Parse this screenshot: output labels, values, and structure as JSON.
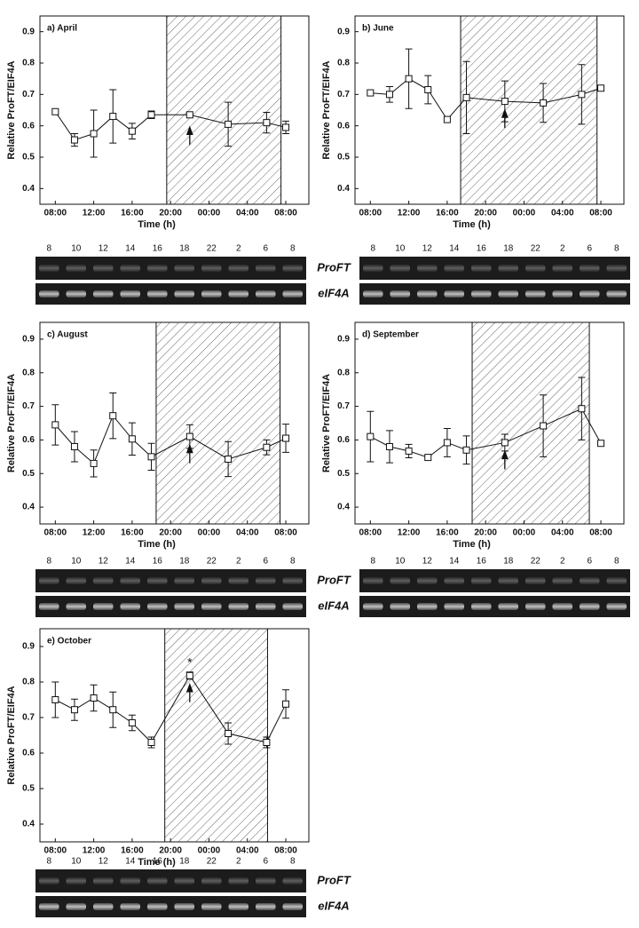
{
  "chart_data": [
    {
      "type": "line",
      "title": "a) April",
      "xlabel": "Time (h)",
      "ylabel": "Relative ProFT/EIF4A",
      "x": [
        8,
        10,
        12,
        14,
        16,
        18,
        22,
        26,
        30,
        32
      ],
      "values": [
        0.645,
        0.555,
        0.575,
        0.63,
        0.583,
        0.635,
        0.635,
        0.605,
        0.61,
        0.595
      ],
      "errors": [
        null,
        0.02,
        0.075,
        0.085,
        0.025,
        0.012,
        null,
        0.07,
        0.033,
        0.02
      ],
      "night": [
        19.6,
        31.5
      ],
      "xlim": [
        6.4,
        34.4
      ],
      "ylim": [
        0.35,
        0.95
      ],
      "xticks": [
        {
          "value": 8,
          "label": "08:00"
        },
        {
          "value": 12,
          "label": "12:00"
        },
        {
          "value": 16,
          "label": "16:00"
        },
        {
          "value": 20,
          "label": "20:00"
        },
        {
          "value": 24,
          "label": "00:00"
        },
        {
          "value": 28,
          "label": "04:00"
        },
        {
          "value": 32,
          "label": "08:00"
        }
      ],
      "yticks": [
        0.4,
        0.5,
        0.6,
        0.7,
        0.8,
        0.9
      ],
      "gel": {
        "lanes": [
          "8",
          "10",
          "12",
          "14",
          "16",
          "18",
          "22",
          "2",
          "6",
          "8"
        ],
        "rows": [
          "ProFT",
          "eIF4A"
        ]
      }
    },
    {
      "type": "line",
      "title": "b) June",
      "xlabel": "Time (h)",
      "ylabel": "Relative ProFT/EIF4A",
      "x": [
        8,
        10,
        12,
        14,
        16,
        18,
        22,
        26,
        30,
        32
      ],
      "values": [
        0.705,
        0.7,
        0.75,
        0.715,
        0.62,
        0.69,
        0.678,
        0.673,
        0.7,
        0.72
      ],
      "errors": [
        null,
        0.025,
        0.095,
        0.045,
        null,
        0.115,
        0.065,
        0.062,
        0.095,
        null
      ],
      "night": [
        17.4,
        31.6
      ],
      "xlim": [
        6.4,
        34.4
      ],
      "ylim": [
        0.35,
        0.95
      ],
      "xticks": [
        {
          "value": 8,
          "label": "08:00"
        },
        {
          "value": 12,
          "label": "12:00"
        },
        {
          "value": 16,
          "label": "16:00"
        },
        {
          "value": 20,
          "label": "20:00"
        },
        {
          "value": 24,
          "label": "00:00"
        },
        {
          "value": 28,
          "label": "04:00"
        },
        {
          "value": 32,
          "label": "08:00"
        }
      ],
      "yticks": [
        0.4,
        0.5,
        0.6,
        0.7,
        0.8,
        0.9
      ],
      "gel": {
        "lanes": [
          "8",
          "10",
          "12",
          "14",
          "16",
          "18",
          "22",
          "2",
          "6",
          "8"
        ]
      }
    },
    {
      "type": "line",
      "title": "c) August",
      "xlabel": "Time (h)",
      "ylabel": "Relative ProFT/EIF4A",
      "x": [
        8,
        10,
        12,
        14,
        16,
        18,
        22,
        26,
        30,
        32
      ],
      "values": [
        0.645,
        0.58,
        0.53,
        0.672,
        0.603,
        0.55,
        0.61,
        0.543,
        0.578,
        0.605
      ],
      "errors": [
        0.06,
        0.045,
        0.04,
        0.068,
        0.048,
        0.04,
        0.035,
        0.052,
        0.022,
        0.042
      ],
      "night": [
        18.5,
        31.4
      ],
      "xlim": [
        6.4,
        34.4
      ],
      "ylim": [
        0.35,
        0.95
      ],
      "xticks": [
        {
          "value": 8,
          "label": "08:00"
        },
        {
          "value": 12,
          "label": "12:00"
        },
        {
          "value": 16,
          "label": "16:00"
        },
        {
          "value": 20,
          "label": "20:00"
        },
        {
          "value": 24,
          "label": "00:00"
        },
        {
          "value": 28,
          "label": "04:00"
        },
        {
          "value": 32,
          "label": "08:00"
        }
      ],
      "yticks": [
        0.4,
        0.5,
        0.6,
        0.7,
        0.8,
        0.9
      ],
      "gel": {
        "lanes": [
          "8",
          "10",
          "12",
          "14",
          "16",
          "18",
          "22",
          "2",
          "6",
          "8"
        ],
        "rows": [
          "ProFT",
          "eIF4A"
        ]
      }
    },
    {
      "type": "line",
      "title": "d) September",
      "xlabel": "Time (h)",
      "ylabel": "Relative ProFT/EIF4A",
      "x": [
        8,
        10,
        12,
        14,
        16,
        18,
        22,
        26,
        30,
        32
      ],
      "values": [
        0.61,
        0.58,
        0.567,
        0.548,
        0.592,
        0.57,
        0.592,
        0.642,
        0.693,
        0.59
      ],
      "errors": [
        0.075,
        0.048,
        0.02,
        null,
        0.042,
        0.042,
        0.025,
        0.092,
        0.093,
        null
      ],
      "night": [
        18.6,
        30.8
      ],
      "xlim": [
        6.4,
        34.4
      ],
      "ylim": [
        0.35,
        0.95
      ],
      "xticks": [
        {
          "value": 8,
          "label": "08:00"
        },
        {
          "value": 12,
          "label": "12:00"
        },
        {
          "value": 16,
          "label": "16:00"
        },
        {
          "value": 20,
          "label": "20:00"
        },
        {
          "value": 24,
          "label": "00:00"
        },
        {
          "value": 28,
          "label": "04:00"
        },
        {
          "value": 32,
          "label": "08:00"
        }
      ],
      "yticks": [
        0.4,
        0.5,
        0.6,
        0.7,
        0.8,
        0.9
      ],
      "gel": {
        "lanes": [
          "8",
          "10",
          "12",
          "14",
          "16",
          "18",
          "22",
          "2",
          "6",
          "8"
        ]
      }
    },
    {
      "type": "line",
      "title": "e) October",
      "xlabel": "Time (h)",
      "ylabel": "Relative ProFT/EIF4A",
      "x": [
        8,
        10,
        12,
        14,
        16,
        18,
        22,
        26,
        30,
        32
      ],
      "values": [
        0.75,
        0.722,
        0.755,
        0.722,
        0.685,
        0.63,
        0.818,
        0.655,
        0.63,
        0.738
      ],
      "errors": [
        0.05,
        0.03,
        0.037,
        0.05,
        0.022,
        0.015,
        0.01,
        0.03,
        0.015,
        0.04
      ],
      "night": [
        19.4,
        30.1
      ],
      "annotation": "*",
      "xlim": [
        6.4,
        34.4
      ],
      "ylim": [
        0.35,
        0.95
      ],
      "xticks": [
        {
          "value": 8,
          "label": "08:00"
        },
        {
          "value": 12,
          "label": "12:00"
        },
        {
          "value": 16,
          "label": "16:00"
        },
        {
          "value": 20,
          "label": "20:00"
        },
        {
          "value": 24,
          "label": "00:00"
        },
        {
          "value": 28,
          "label": "04:00"
        },
        {
          "value": 32,
          "label": "08:00"
        }
      ],
      "yticks": [
        0.4,
        0.5,
        0.6,
        0.7,
        0.8,
        0.9
      ],
      "gel": {
        "lanes": [
          "8",
          "10",
          "12",
          "14",
          "16",
          "18",
          "22",
          "2",
          "6",
          "8"
        ],
        "rows": [
          "ProFT",
          "eIF4A"
        ]
      }
    }
  ]
}
